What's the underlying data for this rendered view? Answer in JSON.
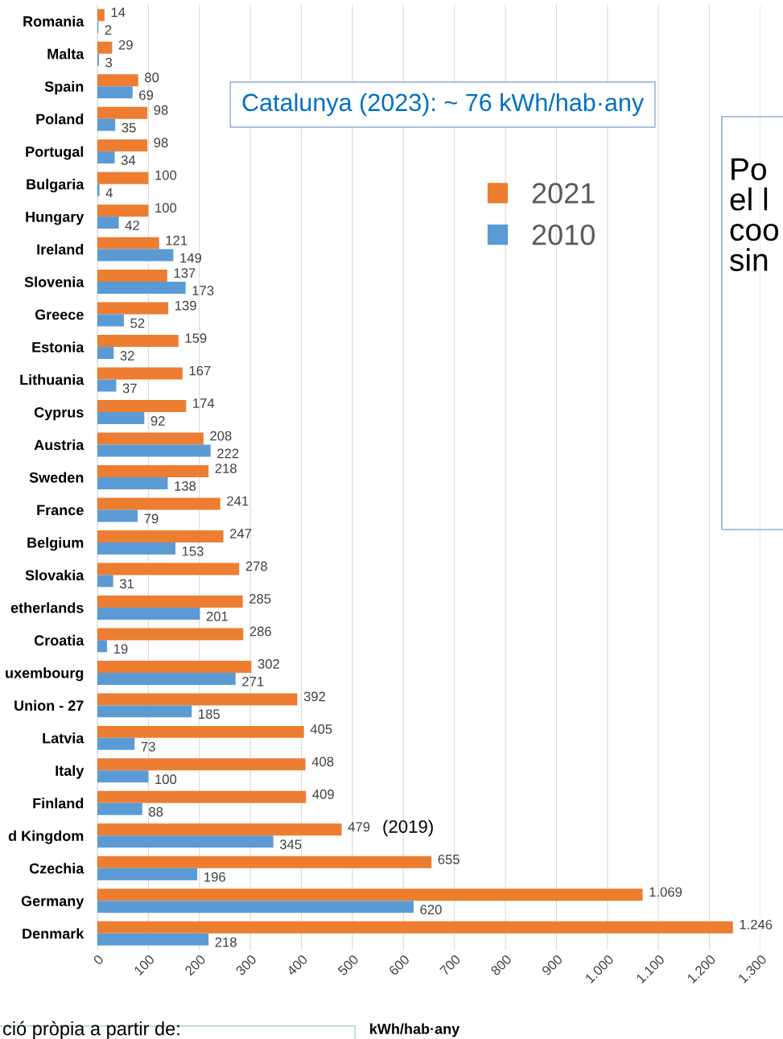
{
  "chart_data": {
    "type": "bar",
    "orientation": "horizontal",
    "xlabel": "kWh/hab·any",
    "categories": [
      "Romania",
      "Malta",
      "Spain",
      "Poland",
      "Portugal",
      "Bulgaria",
      "Hungary",
      "Ireland",
      "Slovenia",
      "Greece",
      "Estonia",
      "Lithuania",
      "Cyprus",
      "Austria",
      "Sweden",
      "France",
      "Belgium",
      "Slovakia",
      "etherlands",
      "Croatia",
      "uxembourg",
      "Union - 27",
      "Latvia",
      "Italy",
      "Finland",
      "d Kingdom",
      "Czechia",
      "Germany",
      "Denmark"
    ],
    "series": [
      {
        "name": "2021",
        "color": "#ed7d31",
        "values": [
          14,
          29,
          80,
          98,
          98,
          100,
          100,
          121,
          137,
          139,
          159,
          167,
          174,
          208,
          218,
          241,
          247,
          278,
          285,
          286,
          302,
          392,
          405,
          408,
          409,
          479,
          655,
          1069,
          1246
        ],
        "value_labels": [
          "14",
          "29",
          "80",
          "98",
          "98",
          "100",
          "100",
          "121",
          "137",
          "139",
          "159",
          "167",
          "174",
          "208",
          "218",
          "241",
          "247",
          "278",
          "285",
          "286",
          "302",
          "392",
          "405",
          "408",
          "409",
          "479",
          "655",
          "1.069",
          "1.246"
        ]
      },
      {
        "name": "2010",
        "color": "#5b9bd5",
        "values": [
          2,
          3,
          69,
          35,
          34,
          4,
          42,
          149,
          173,
          52,
          32,
          37,
          92,
          222,
          138,
          79,
          153,
          31,
          201,
          19,
          271,
          185,
          73,
          100,
          88,
          345,
          196,
          620,
          218
        ],
        "value_labels": [
          "2",
          "3",
          "69",
          "35",
          "34",
          "4",
          "42",
          "149",
          "173",
          "52",
          "32",
          "37",
          "92",
          "222",
          "138",
          "79",
          "153",
          "31",
          "201",
          "19",
          "271",
          "185",
          "73",
          "100",
          "88",
          "345",
          "196",
          "620",
          "218"
        ]
      }
    ],
    "xlim": [
      0,
      1300
    ],
    "xticks": [
      0,
      100,
      200,
      300,
      400,
      500,
      600,
      700,
      800,
      900,
      {
        "value": 1000,
        "label": "1.000"
      },
      {
        "value": 1100,
        "label": "1.100"
      },
      {
        "value": 1200,
        "label": "1.200"
      },
      {
        "value": 1300,
        "label": "1.300"
      }
    ],
    "grid": "x",
    "legend": "top",
    "annotations": [
      "Catalunya (2023): ~ 76 kWh/hab·any",
      "(2019)",
      "Po\nel l\ncoo\nsin",
      "ció pròpia a partir de:"
    ]
  }
}
